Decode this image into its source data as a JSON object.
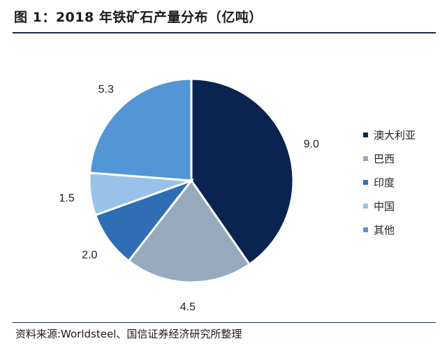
{
  "title": "图 1：2018 年铁矿石产量分布（亿吨）",
  "source": "资料来源:Worldsteel、国信证券经济研究所整理",
  "chart_data": {
    "type": "pie",
    "title": "图 1：2018 年铁矿石产量分布（亿吨）",
    "unit": "亿吨",
    "legend_position": "right",
    "slices": [
      {
        "name": "澳大利亚",
        "value": 9.0,
        "label": "9.0",
        "color": "#0b2350"
      },
      {
        "name": "巴西",
        "value": 4.5,
        "label": "4.5",
        "color": "#96a9bd"
      },
      {
        "name": "印度",
        "value": 2.0,
        "label": "2.0",
        "color": "#2f6db5"
      },
      {
        "name": "中国",
        "value": 1.5,
        "label": "1.5",
        "color": "#98c2ea"
      },
      {
        "name": "其他",
        "value": 5.3,
        "label": "5.3",
        "color": "#5296d5"
      }
    ]
  }
}
